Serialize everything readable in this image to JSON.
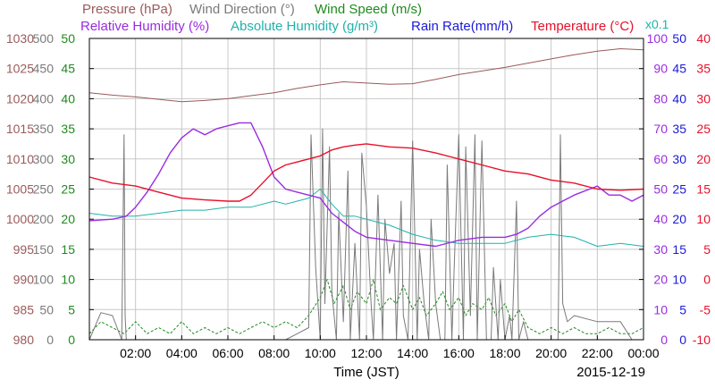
{
  "colors": {
    "pressure": "#9a5a5a",
    "wind_direction": "#7a7a7a",
    "wind_speed": "#1e8a1e",
    "humidity": "#9a2be2",
    "abs_humidity": "#20b2aa",
    "rain": "#1a1ad8",
    "temperature": "#e8102a",
    "grid": "#c8c8c8",
    "axis": "#000000"
  },
  "chart_data": {
    "type": "line",
    "date": "2015-12-19",
    "xlabel": "Time (JST)",
    "x_ticks": [
      "02:00",
      "04:00",
      "06:00",
      "08:00",
      "10:00",
      "12:00",
      "14:00",
      "16:00",
      "18:00",
      "20:00",
      "22:00",
      "00:00"
    ],
    "legend": [
      {
        "key": "pressure",
        "label": "Pressure (hPa)"
      },
      {
        "key": "wind_direction",
        "label": "Wind Direction (°)"
      },
      {
        "key": "wind_speed",
        "label": "Wind Speed (m/s)"
      },
      {
        "key": "humidity",
        "label": "Relative Humidity (%)"
      },
      {
        "key": "abs_humidity",
        "label": "Absolute Humidity (g/m³)"
      },
      {
        "key": "rain",
        "label": "Rain Rate(mm/h)"
      },
      {
        "key": "temperature",
        "label": "Temperature (°C)"
      }
    ],
    "abs_humidity_scale_note": "x0.1",
    "axes": {
      "pressure": {
        "ticks": [
          "980",
          "985",
          "990",
          "995",
          "1000",
          "1005",
          "1010",
          "1015",
          "1020",
          "1025",
          "1030"
        ],
        "range": [
          980,
          1030
        ]
      },
      "wind_direction": {
        "ticks": [
          "0",
          "50",
          "100",
          "150",
          "200",
          "250",
          "300",
          "350",
          "400",
          "450",
          "500"
        ],
        "range": [
          0,
          500
        ]
      },
      "wind_speed": {
        "ticks": [
          "0",
          "5",
          "10",
          "15",
          "20",
          "25",
          "30",
          "35",
          "40",
          "45",
          "50"
        ],
        "range": [
          0,
          50
        ]
      },
      "humidity": {
        "ticks": [
          "0",
          "10",
          "20",
          "30",
          "40",
          "50",
          "60",
          "70",
          "80",
          "90",
          "100"
        ],
        "range": [
          0,
          100
        ]
      },
      "rain": {
        "ticks": [
          "0",
          "5",
          "10",
          "15",
          "20",
          "25",
          "30",
          "35",
          "40",
          "45",
          "50"
        ],
        "range": [
          0,
          50
        ]
      },
      "temperature": {
        "ticks": [
          "-10",
          "-5",
          "0",
          "5",
          "10",
          "15",
          "20",
          "25",
          "30",
          "35",
          "40"
        ],
        "range": [
          -10,
          40
        ]
      }
    },
    "series": [
      {
        "key": "pressure",
        "axis": "pressure",
        "x": [
          0,
          1,
          2,
          3,
          4,
          5,
          6,
          7,
          8,
          9,
          10,
          11,
          12,
          13,
          14,
          15,
          16,
          17,
          18,
          19,
          20,
          21,
          22,
          23,
          24
        ],
        "values": [
          1021,
          1020.6,
          1020.3,
          1019.9,
          1019.5,
          1019.7,
          1020,
          1020.5,
          1021,
          1021.7,
          1022.3,
          1022.8,
          1022.6,
          1022.4,
          1022.5,
          1023.2,
          1024,
          1024.6,
          1025.2,
          1025.9,
          1026.6,
          1027.3,
          1027.9,
          1028.3,
          1028.1
        ]
      },
      {
        "key": "humidity",
        "axis": "humidity",
        "x": [
          0,
          1,
          1.6,
          2,
          2.5,
          3,
          3.5,
          4,
          4.5,
          5,
          5.5,
          6,
          6.5,
          7,
          7.5,
          8,
          8.5,
          9,
          10,
          10.5,
          11,
          11.5,
          12,
          13,
          14,
          15,
          16,
          17,
          17.5,
          18,
          18.5,
          19,
          19.5,
          20,
          21,
          22,
          22.5,
          23,
          23.5,
          24
        ],
        "values": [
          39.5,
          40,
          41,
          44,
          49,
          55,
          62,
          67,
          70,
          68,
          70,
          71,
          72,
          72,
          64,
          54,
          50,
          49,
          47,
          42,
          39,
          36,
          34,
          33,
          32,
          31,
          33,
          34,
          34,
          34,
          35,
          37,
          41,
          44,
          48,
          51,
          48,
          48,
          46,
          48
        ]
      },
      {
        "key": "abs_humidity",
        "axis": "humidity",
        "x": [
          0,
          1,
          2,
          3,
          4,
          5,
          6,
          7,
          8,
          8.5,
          9,
          9.5,
          10,
          10.5,
          11,
          11.5,
          12,
          12.5,
          13,
          14,
          15,
          16,
          17,
          18,
          19,
          20,
          21,
          22,
          23,
          24
        ],
        "values": [
          42,
          41,
          41,
          42,
          43,
          43,
          44,
          44,
          46,
          45,
          46,
          47,
          50,
          45,
          41,
          41,
          40,
          39,
          38,
          35,
          33,
          32,
          32,
          32,
          34,
          35,
          34,
          31,
          32,
          31
        ]
      },
      {
        "key": "temperature",
        "axis": "temperature",
        "x": [
          0,
          1,
          2,
          3,
          4,
          5,
          6,
          6.5,
          7,
          7.5,
          8,
          8.5,
          9,
          9.5,
          10,
          10.5,
          11,
          11.5,
          12,
          13,
          14,
          15,
          16,
          17,
          18,
          19,
          20,
          21,
          22,
          23,
          24
        ],
        "values": [
          17,
          16,
          15.5,
          14.5,
          13.5,
          13.2,
          13,
          13,
          14,
          16,
          18,
          19,
          19.5,
          20,
          20.5,
          21.5,
          22,
          22.3,
          22.5,
          22,
          21.8,
          21,
          20,
          19,
          18,
          17.5,
          16.5,
          16,
          15,
          14.8,
          15
        ]
      },
      {
        "key": "wind_direction",
        "axis": "wind_direction",
        "x": [
          0,
          0.5,
          1,
          1.4,
          1.5,
          1.55,
          1.6,
          1.7,
          2,
          3,
          4,
          5,
          6,
          7,
          7.5,
          8,
          8.5,
          9,
          9.5,
          9.6,
          9.8,
          10,
          10.1,
          10.2,
          10.4,
          10.5,
          10.7,
          10.8,
          11,
          11.2,
          11.3,
          11.5,
          11.7,
          11.8,
          12,
          12.2,
          12.3,
          12.5,
          12.7,
          12.8,
          13,
          13.2,
          13.3,
          13.5,
          13.6,
          13.8,
          14,
          14.2,
          14.3,
          14.5,
          14.7,
          14.8,
          15,
          15.2,
          15.4,
          15.5,
          15.7,
          15.8,
          16,
          16.2,
          16.3,
          16.5,
          16.7,
          16.8,
          17,
          17.2,
          17.4,
          17.5,
          17.7,
          17.8,
          18,
          18.2,
          18.3,
          18.5,
          18.6,
          18.8,
          19,
          19.5,
          20,
          20.3,
          20.4,
          20.5,
          20.7,
          21,
          22,
          23,
          23.5,
          24
        ],
        "values": [
          0,
          45,
          40,
          0,
          340,
          40,
          0,
          0,
          0,
          0,
          0,
          0,
          0,
          0,
          0,
          0,
          0,
          10,
          20,
          340,
          120,
          0,
          350,
          60,
          320,
          80,
          0,
          210,
          30,
          280,
          0,
          160,
          0,
          310,
          220,
          60,
          0,
          240,
          0,
          200,
          110,
          160,
          0,
          230,
          40,
          0,
          330,
          0,
          150,
          60,
          0,
          200,
          60,
          0,
          0,
          290,
          0,
          120,
          340,
          0,
          320,
          40,
          340,
          0,
          330,
          0,
          0,
          120,
          0,
          100,
          0,
          40,
          0,
          230,
          0,
          30,
          0,
          0,
          0,
          0,
          340,
          60,
          30,
          40,
          30,
          30,
          0,
          0
        ]
      },
      {
        "key": "wind_speed",
        "axis": "wind_speed",
        "x": [
          0,
          0.5,
          1,
          1.5,
          2,
          2.5,
          3,
          3.5,
          4,
          4.5,
          5,
          5.5,
          6,
          6.5,
          7,
          7.5,
          8,
          8.5,
          9,
          9.5,
          10,
          10.3,
          10.6,
          11,
          11.3,
          11.6,
          12,
          12.3,
          12.6,
          13,
          13.3,
          13.6,
          14,
          14.3,
          14.6,
          15,
          15.3,
          15.6,
          16,
          16.3,
          16.6,
          17,
          17.3,
          17.6,
          18,
          18.3,
          18.6,
          19,
          19.5,
          20,
          20.5,
          21,
          21.5,
          22,
          22.5,
          23,
          23.5,
          24
        ],
        "values": [
          1,
          3,
          2,
          1,
          3,
          1,
          2,
          1,
          3,
          1,
          2,
          1,
          2,
          1,
          2,
          3,
          2,
          3,
          2,
          4,
          7,
          10,
          6,
          9,
          5,
          8,
          6,
          10,
          5,
          7,
          6,
          9,
          5,
          7,
          4,
          6,
          8,
          5,
          7,
          4,
          6,
          5,
          7,
          4,
          6,
          3,
          5,
          2,
          1,
          2,
          1,
          2,
          1,
          1,
          2,
          1,
          1,
          2
        ]
      },
      {
        "key": "rain",
        "axis": "rain",
        "x": [
          0,
          24
        ],
        "values": [
          0,
          0
        ]
      }
    ]
  }
}
